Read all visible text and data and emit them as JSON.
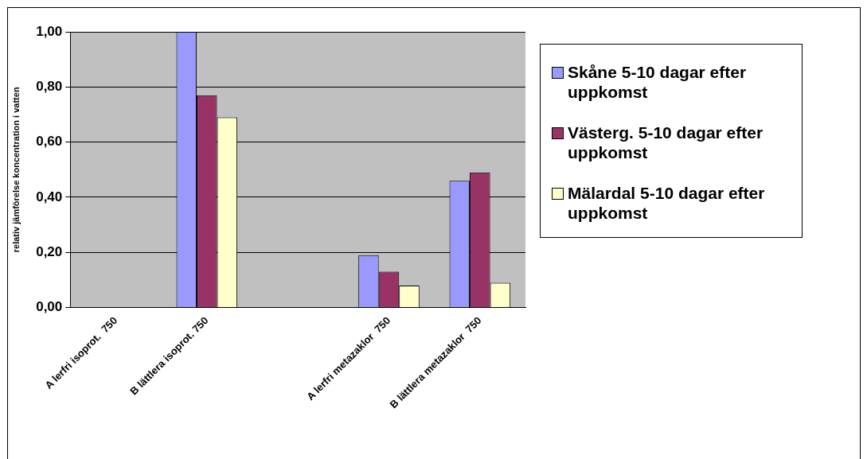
{
  "chart_data": {
    "type": "bar",
    "ylabel": "relativ jämförelse koncentration i vatten",
    "categories": [
      "A lerfri isoprot.  750",
      "B lättlera isoprot. 750",
      null,
      "A lerfri metazaklor  750",
      "B lättlera metazaklor  750"
    ],
    "series": [
      {
        "name": "Skåne 5-10 dagar efter uppkomst",
        "color": "#9999ff",
        "values": [
          null,
          1.0,
          null,
          0.19,
          0.46
        ]
      },
      {
        "name": "Västerg. 5-10 dagar efter uppkomst",
        "color": "#993366",
        "values": [
          null,
          0.77,
          null,
          0.13,
          0.49
        ]
      },
      {
        "name": "Mälardal  5-10 dagar efter uppkomst",
        "color": "#ffffcc",
        "values": [
          null,
          0.69,
          null,
          0.08,
          0.09
        ]
      }
    ],
    "ylim": [
      0,
      1
    ],
    "yticks": [
      {
        "value": 0,
        "label": "0,00"
      },
      {
        "value": 0.2,
        "label": "0,20"
      },
      {
        "value": 0.4,
        "label": "0,40"
      },
      {
        "value": 0.6,
        "label": "0,60"
      },
      {
        "value": 0.8,
        "label": "0,80"
      },
      {
        "value": 1,
        "label": "1,00"
      }
    ],
    "grid": "y",
    "legend": "right"
  }
}
